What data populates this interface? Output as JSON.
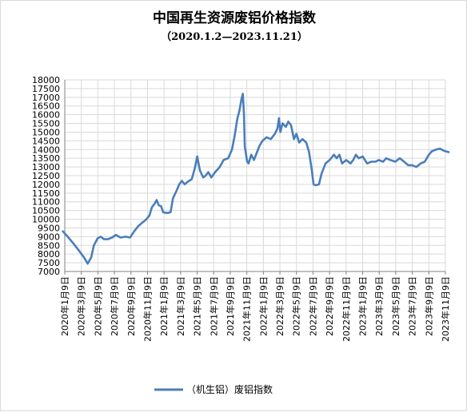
{
  "chart_data": {
    "type": "line",
    "title": "中国再生资源废铝价格指数",
    "subtitle": "（2020.1.2—2023.11.21）",
    "xlabel": "",
    "ylabel": "",
    "ylim": [
      7000,
      18000
    ],
    "yticks": [
      7000,
      7500,
      8000,
      8500,
      9000,
      9500,
      10000,
      10500,
      11000,
      11500,
      12000,
      12500,
      13000,
      13500,
      14000,
      14500,
      15000,
      15500,
      16000,
      16500,
      17000,
      17500,
      18000
    ],
    "x_tick_labels": [
      "2020年1月9日",
      "2020年3月9日",
      "2020年5月9日",
      "2020年7月9日",
      "2020年9月9日",
      "2020年11月9日",
      "2021年1月9日",
      "2021年3月9日",
      "2021年5月9日",
      "2021年7月9日",
      "2021年9月9日",
      "2021年11月9日",
      "2022年1月9日",
      "2022年3月9日",
      "2022年5月9日",
      "2022年7月9日",
      "2022年9月9日",
      "2022年11月9日",
      "2023年1月9日",
      "2023年3月9日",
      "2023年5月9日",
      "2023年7月9日",
      "2023年9月9日",
      "2023年11月9日"
    ],
    "grid": true,
    "legend_position": "bottom",
    "series": [
      {
        "name": "（机生铝）废铝指数",
        "color": "#4a7ebb",
        "points": [
          [
            "2020-01-02",
            9300
          ],
          [
            "2020-01-20",
            9000
          ],
          [
            "2020-02-10",
            8600
          ],
          [
            "2020-03-01",
            8200
          ],
          [
            "2020-03-20",
            7800
          ],
          [
            "2020-04-02",
            7450
          ],
          [
            "2020-04-15",
            7800
          ],
          [
            "2020-04-25",
            8500
          ],
          [
            "2020-05-09",
            8900
          ],
          [
            "2020-05-20",
            9000
          ],
          [
            "2020-06-01",
            8850
          ],
          [
            "2020-06-15",
            8850
          ],
          [
            "2020-07-01",
            8950
          ],
          [
            "2020-07-15",
            9100
          ],
          [
            "2020-08-01",
            8950
          ],
          [
            "2020-08-20",
            9000
          ],
          [
            "2020-09-05",
            8950
          ],
          [
            "2020-09-20",
            9300
          ],
          [
            "2020-10-05",
            9600
          ],
          [
            "2020-10-20",
            9800
          ],
          [
            "2020-11-01",
            9950
          ],
          [
            "2020-11-15",
            10200
          ],
          [
            "2020-11-25",
            10700
          ],
          [
            "2020-12-05",
            10900
          ],
          [
            "2020-12-12",
            11100
          ],
          [
            "2020-12-20",
            10800
          ],
          [
            "2020-12-28",
            10750
          ],
          [
            "2021-01-05",
            10400
          ],
          [
            "2021-01-20",
            10350
          ],
          [
            "2021-02-01",
            10400
          ],
          [
            "2021-02-10",
            11200
          ],
          [
            "2021-02-25",
            11700
          ],
          [
            "2021-03-05",
            12000
          ],
          [
            "2021-03-15",
            12200
          ],
          [
            "2021-03-25",
            12000
          ],
          [
            "2021-04-05",
            12150
          ],
          [
            "2021-04-20",
            12300
          ],
          [
            "2021-05-01",
            12900
          ],
          [
            "2021-05-10",
            13600
          ],
          [
            "2021-05-20",
            12800
          ],
          [
            "2021-06-01",
            12400
          ],
          [
            "2021-06-10",
            12500
          ],
          [
            "2021-06-20",
            12700
          ],
          [
            "2021-07-01",
            12400
          ],
          [
            "2021-07-15",
            12700
          ],
          [
            "2021-08-01",
            13000
          ],
          [
            "2021-08-15",
            13400
          ],
          [
            "2021-09-01",
            13500
          ],
          [
            "2021-09-15",
            14000
          ],
          [
            "2021-09-25",
            14800
          ],
          [
            "2021-10-05",
            15800
          ],
          [
            "2021-10-12",
            16200
          ],
          [
            "2021-10-20",
            16900
          ],
          [
            "2021-10-25",
            17200
          ],
          [
            "2021-10-29",
            16000
          ],
          [
            "2021-11-01",
            14200
          ],
          [
            "2021-11-05",
            13800
          ],
          [
            "2021-11-10",
            13300
          ],
          [
            "2021-11-15",
            13200
          ],
          [
            "2021-11-25",
            13700
          ],
          [
            "2021-12-05",
            13400
          ],
          [
            "2021-12-15",
            13800
          ],
          [
            "2021-12-25",
            14200
          ],
          [
            "2022-01-05",
            14500
          ],
          [
            "2022-01-20",
            14700
          ],
          [
            "2022-02-05",
            14600
          ],
          [
            "2022-02-20",
            14900
          ],
          [
            "2022-03-01",
            15200
          ],
          [
            "2022-03-07",
            15800
          ],
          [
            "2022-03-12",
            15000
          ],
          [
            "2022-03-20",
            15500
          ],
          [
            "2022-04-01",
            15300
          ],
          [
            "2022-04-10",
            15600
          ],
          [
            "2022-04-20",
            15400
          ],
          [
            "2022-05-01",
            14600
          ],
          [
            "2022-05-10",
            14900
          ],
          [
            "2022-05-20",
            14400
          ],
          [
            "2022-06-01",
            14600
          ],
          [
            "2022-06-15",
            14400
          ],
          [
            "2022-06-25",
            13900
          ],
          [
            "2022-07-05",
            12900
          ],
          [
            "2022-07-12",
            12000
          ],
          [
            "2022-07-20",
            11950
          ],
          [
            "2022-08-01",
            12000
          ],
          [
            "2022-08-10",
            12600
          ],
          [
            "2022-08-25",
            13200
          ],
          [
            "2022-09-09",
            13400
          ],
          [
            "2022-09-25",
            13700
          ],
          [
            "2022-10-05",
            13500
          ],
          [
            "2022-10-15",
            13700
          ],
          [
            "2022-10-25",
            13200
          ],
          [
            "2022-11-09",
            13400
          ],
          [
            "2022-11-25",
            13200
          ],
          [
            "2022-12-05",
            13400
          ],
          [
            "2022-12-15",
            13700
          ],
          [
            "2022-12-25",
            13500
          ],
          [
            "2023-01-09",
            13600
          ],
          [
            "2023-01-25",
            13200
          ],
          [
            "2023-02-10",
            13300
          ],
          [
            "2023-02-25",
            13300
          ],
          [
            "2023-03-09",
            13400
          ],
          [
            "2023-03-25",
            13300
          ],
          [
            "2023-04-05",
            13500
          ],
          [
            "2023-04-20",
            13400
          ],
          [
            "2023-05-09",
            13300
          ],
          [
            "2023-05-25",
            13500
          ],
          [
            "2023-06-10",
            13300
          ],
          [
            "2023-06-25",
            13100
          ],
          [
            "2023-07-09",
            13100
          ],
          [
            "2023-07-25",
            13000
          ],
          [
            "2023-08-10",
            13200
          ],
          [
            "2023-08-25",
            13300
          ],
          [
            "2023-09-09",
            13700
          ],
          [
            "2023-09-20",
            13900
          ],
          [
            "2023-10-05",
            14000
          ],
          [
            "2023-10-20",
            14050
          ],
          [
            "2023-11-01",
            13950
          ],
          [
            "2023-11-10",
            13900
          ],
          [
            "2023-11-21",
            13850
          ]
        ]
      }
    ]
  }
}
